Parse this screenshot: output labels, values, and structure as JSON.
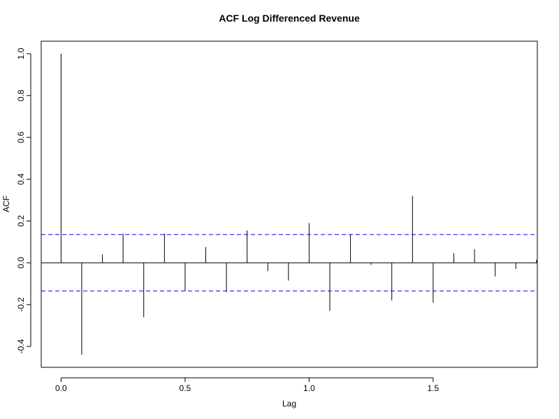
{
  "chart_data": {
    "type": "bar",
    "title": "ACF Log Differenced Revenue",
    "xlabel": "Lag",
    "ylabel": "ACF",
    "xlim": [
      -0.08,
      1.92
    ],
    "ylim": [
      -0.5,
      1.06
    ],
    "x_ticks": [
      0.0,
      0.5,
      1.0,
      1.5
    ],
    "x_tick_labels": [
      "0.0",
      "0.5",
      "1.0",
      "1.5"
    ],
    "y_ticks": [
      -0.4,
      -0.2,
      0.0,
      0.2,
      0.4,
      0.6,
      0.8,
      1.0
    ],
    "y_tick_labels": [
      "-0.4",
      "-0.2",
      "0.0",
      "0.2",
      "0.4",
      "0.6",
      "0.8",
      "1.0"
    ],
    "lags": [
      0.0,
      0.0833,
      0.1667,
      0.25,
      0.3333,
      0.4167,
      0.5,
      0.5833,
      0.6667,
      0.75,
      0.8333,
      0.9167,
      1.0,
      1.0833,
      1.1667,
      1.25,
      1.3333,
      1.4167,
      1.5,
      1.5833,
      1.6667,
      1.75,
      1.8333,
      1.9167
    ],
    "values": [
      1.0,
      -0.44,
      0.04,
      0.14,
      -0.26,
      0.14,
      -0.135,
      0.075,
      -0.14,
      0.155,
      -0.04,
      -0.085,
      0.19,
      -0.23,
      0.135,
      -0.01,
      -0.18,
      0.32,
      -0.19,
      0.045,
      0.065,
      -0.065,
      -0.03,
      0.015
    ],
    "confidence_bound": 0.135,
    "grid": false,
    "colors": {
      "spike": "#000000",
      "zero_line": "#000000",
      "confidence_line": "#0000ff",
      "axis": "#000000"
    }
  }
}
